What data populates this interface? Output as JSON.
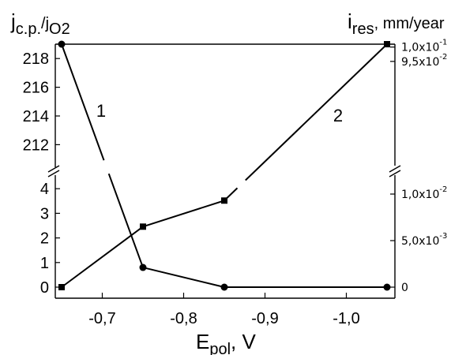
{
  "chart_data": {
    "type": "line",
    "left_axis_label": {
      "main": "j",
      "sub": "c.p.",
      "sep": "/j",
      "sub2": "O2"
    },
    "right_axis_label": {
      "main": "i",
      "sub": "res",
      "rest": ", mm/year"
    },
    "x_axis_label": {
      "main": "E",
      "sub": "pol",
      "rest": ", V"
    },
    "x_ticks": [
      {
        "value": -0.7,
        "label": "-0,7"
      },
      {
        "value": -0.8,
        "label": "-0,8"
      },
      {
        "value": -0.9,
        "label": "-0,9"
      },
      {
        "value": -1.0,
        "label": "-1,0"
      }
    ],
    "left_ticks_lower": [
      {
        "value": 0,
        "label": "0"
      },
      {
        "value": 1,
        "label": "1"
      },
      {
        "value": 2,
        "label": "2"
      },
      {
        "value": 3,
        "label": "3"
      },
      {
        "value": 4,
        "label": "4"
      }
    ],
    "left_ticks_upper": [
      {
        "value": 212,
        "label": "212"
      },
      {
        "value": 214,
        "label": "214"
      },
      {
        "value": 216,
        "label": "216"
      },
      {
        "value": 218,
        "label": "218"
      }
    ],
    "right_ticks_lower": [
      {
        "value": 0,
        "label": "0"
      },
      {
        "value": 0.005,
        "label": "5,0x10",
        "exp": "-3"
      },
      {
        "value": 0.01,
        "label": "1,0x10",
        "exp": "-2"
      }
    ],
    "right_ticks_upper": [
      {
        "value": 0.095,
        "label": "9,5x10",
        "exp": "-2"
      },
      {
        "value": 0.1,
        "label": "1,0x10",
        "exp": "-1"
      }
    ],
    "series": [
      {
        "label": "1",
        "marker": "circle",
        "axis": "left",
        "x": [
          -0.65,
          -0.75,
          -0.85,
          -1.05
        ],
        "y": [
          219,
          0.8,
          0,
          0
        ]
      },
      {
        "label": "2",
        "marker": "square",
        "axis": "right",
        "x": [
          -0.65,
          -0.75,
          -0.85,
          -1.05
        ],
        "y": [
          0,
          0.0065,
          0.0093,
          0.101
        ]
      }
    ]
  }
}
